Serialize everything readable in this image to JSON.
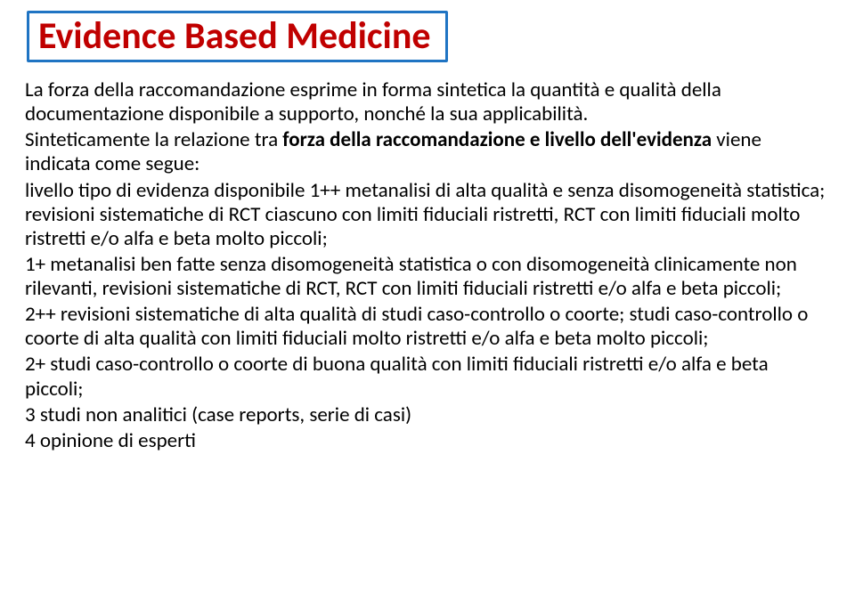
{
  "title": {
    "text": "Evidence Based Medicine",
    "color": "#c00000",
    "border_color": "#1f74c3",
    "fontsize": 42,
    "font_weight": 700
  },
  "body": {
    "fontsize": 23,
    "color": "#000000",
    "intro_part1": "La forza della raccomandazione esprime in forma sintetica la quantità e qualità della documentazione disponibile a supporto, nonché la sua applicabilità.",
    "intro_part2_a": "Sinteticamente la relazione tra ",
    "intro_part2_bold": "forza della raccomandazione e livello dell'evidenza",
    "intro_part2_b": " viene indicata come segue:",
    "levels": [
      " livello tipo di evidenza disponibile 1++ metanalisi di alta qualità e senza disomogeneità statistica; revisioni sistematiche di RCT ciascuno con limiti fiduciali ristretti, RCT con limiti fiduciali molto ristretti e/o alfa e beta molto piccoli;",
      "1+ metanalisi ben fatte senza disomogeneità statistica o con disomogeneità clinicamente non rilevanti, revisioni sistematiche di RCT, RCT con limiti fiduciali ristretti e/o alfa e beta piccoli;",
      "2++ revisioni sistematiche di alta qualità di studi caso-controllo o coorte; studi caso-controllo o coorte di alta qualità con limiti fiduciali molto ristretti e/o alfa e beta molto piccoli;",
      "2+ studi caso-controllo o coorte di buona qualità con limiti fiduciali ristretti e/o alfa e beta piccoli;",
      "3 studi non analitici (case reports, serie di casi)",
      "4 opinione di esperti"
    ]
  }
}
